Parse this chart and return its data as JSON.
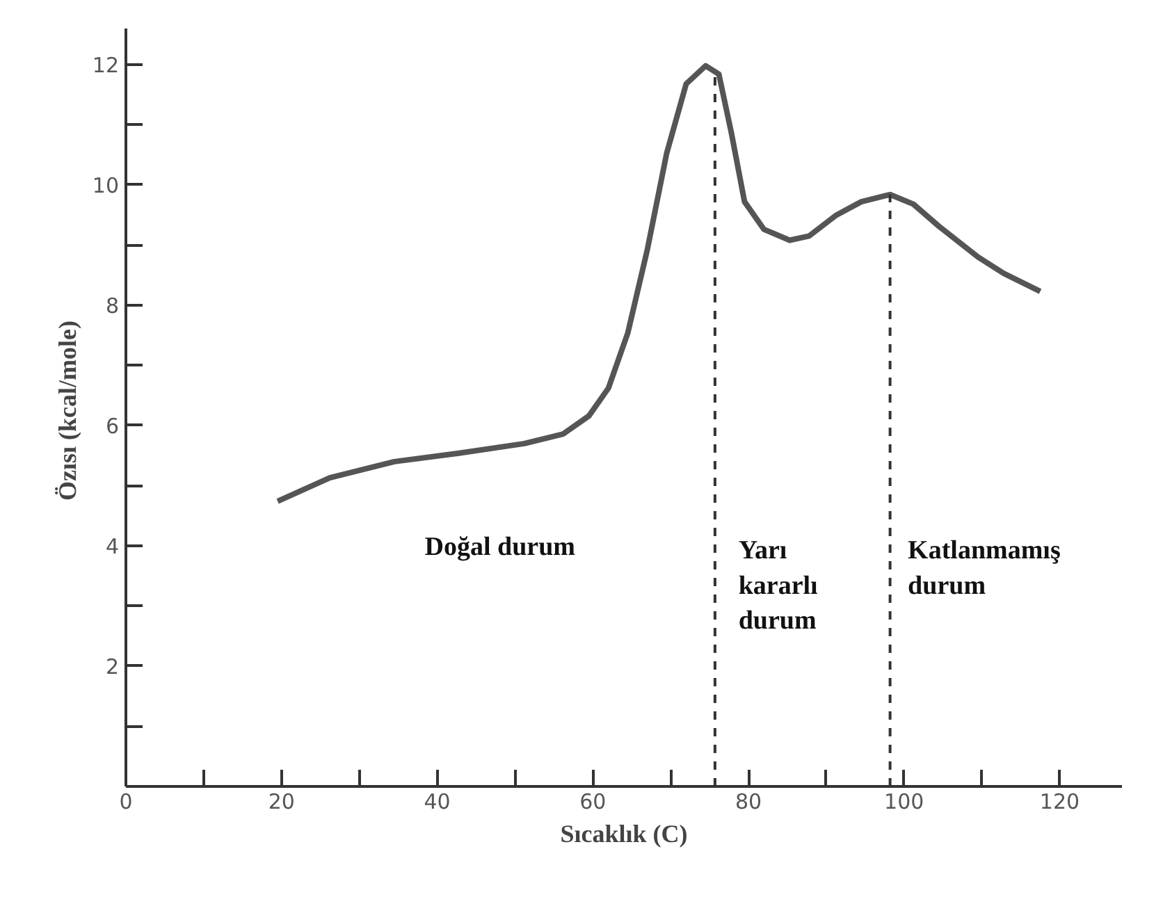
{
  "chart_data": {
    "type": "line",
    "xlabel": "Sıcaklık (C)",
    "ylabel": "Özısı  (kcal/mole)",
    "x": [
      19.5,
      26.2,
      34.5,
      42.8,
      51.2,
      56.2,
      59.5,
      62,
      64.5,
      67,
      69.5,
      72,
      74.5,
      76.2,
      77.8,
      79.5,
      82,
      85.3,
      87.8,
      91.2,
      94.5,
      98.2,
      101.2,
      104.5,
      109.5,
      112.8,
      117.5
    ],
    "series": [
      {
        "color": "#555555",
        "values": [
          4.74,
          5.13,
          5.4,
          5.54,
          5.7,
          5.86,
          6.16,
          6.62,
          7.54,
          8.92,
          10.53,
          11.68,
          11.98,
          11.84,
          10.87,
          9.72,
          9.26,
          9.08,
          9.15,
          9.49,
          9.72,
          9.84,
          9.68,
          9.31,
          8.8,
          8.53,
          8.23
        ]
      }
    ],
    "xlim": [
      0,
      128
    ],
    "ylim": [
      0,
      12.6
    ],
    "xticks": [
      0,
      {
        "value": 10,
        "label": null
      },
      20,
      {
        "value": 30,
        "label": null
      },
      40,
      {
        "value": 50,
        "label": null
      },
      60,
      {
        "value": 70,
        "label": null
      },
      80,
      {
        "value": 90,
        "label": null
      },
      100,
      {
        "value": 110,
        "label": null
      },
      120
    ],
    "yticks": [
      {
        "value": 1,
        "label": null
      },
      2,
      {
        "value": 3,
        "label": null
      },
      4,
      {
        "value": 5,
        "label": null
      },
      6,
      {
        "value": 7,
        "label": null
      },
      8,
      {
        "value": 9,
        "label": null
      },
      10,
      {
        "value": 11,
        "label": null
      },
      12
    ],
    "ref_lines": [
      {
        "axis": "x",
        "value": 75.7,
        "line_style": "dashed",
        "color": "#333333"
      },
      {
        "axis": "x",
        "value": 98.2,
        "line_style": "dashed",
        "color": "#333333"
      }
    ],
    "annotations": [
      "Doğal durum",
      "Yarı\nkararlı\ndurum",
      "Katlanmamış\ndurum"
    ],
    "grid": false,
    "marker": "none",
    "line_style": "solid"
  }
}
